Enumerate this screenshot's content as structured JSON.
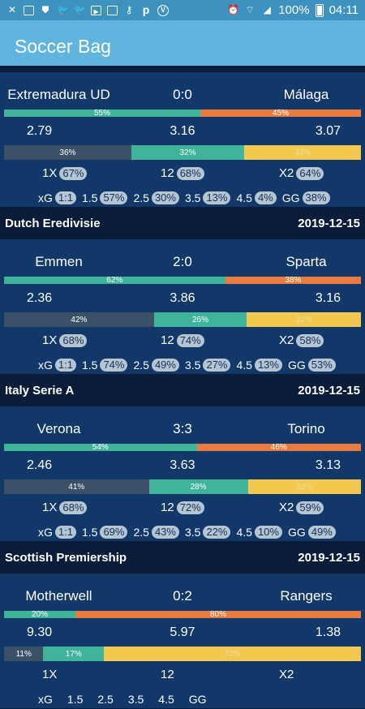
{
  "status_bar": {
    "battery_pct": "100%",
    "time": "04:11",
    "icons": [
      "missed-call-icon",
      "image-icon",
      "shield-icon",
      "twitter-icon",
      "twitter-icon",
      "youtube-icon",
      "video-icon",
      "key-icon",
      "p-icon",
      "v-icon",
      "alarm-icon",
      "wifi-icon",
      "signal-icon",
      "battery-icon"
    ]
  },
  "app_bar": {
    "title": "Soccer Bag"
  },
  "leagues": [
    {
      "name": "",
      "date": "",
      "matches": [
        {
          "home": "Extremadura UD",
          "score": "0:0",
          "away": "Málaga",
          "home_win_pct": 55,
          "away_win_pct": 45,
          "home_win_label": "55%",
          "away_win_label": "45%",
          "odds_1": "2.79",
          "odds_x": "3.16",
          "odds_2": "3.07",
          "prob_home": 36,
          "prob_draw": 32,
          "prob_away": 33,
          "prob_home_label": "36%",
          "prob_draw_label": "32%",
          "prob_away_label": "33%",
          "dc_1x": "67%",
          "dc_12": "68%",
          "dc_x2": "64%",
          "xg": "1:1",
          "o15": "57%",
          "o25": "30%",
          "o35": "13%",
          "o45": "4%",
          "gg": "38%"
        }
      ]
    },
    {
      "name": "Dutch Eredivisie",
      "date": "2019-12-15",
      "matches": [
        {
          "home": "Emmen",
          "score": "2:0",
          "away": "Sparta",
          "home_win_pct": 62,
          "away_win_pct": 38,
          "home_win_label": "62%",
          "away_win_label": "38%",
          "odds_1": "2.36",
          "odds_x": "3.86",
          "odds_2": "3.16",
          "prob_home": 42,
          "prob_draw": 26,
          "prob_away": 32,
          "prob_home_label": "42%",
          "prob_draw_label": "26%",
          "prob_away_label": "32%",
          "dc_1x": "68%",
          "dc_12": "74%",
          "dc_x2": "58%",
          "xg": "1:1",
          "o15": "74%",
          "o25": "49%",
          "o35": "27%",
          "o45": "13%",
          "gg": "53%"
        }
      ]
    },
    {
      "name": "Italy Serie A",
      "date": "2019-12-15",
      "matches": [
        {
          "home": "Verona",
          "score": "3:3",
          "away": "Torino",
          "home_win_pct": 54,
          "away_win_pct": 46,
          "home_win_label": "54%",
          "away_win_label": "46%",
          "odds_1": "2.46",
          "odds_x": "3.63",
          "odds_2": "3.13",
          "prob_home": 41,
          "prob_draw": 28,
          "prob_away": 32,
          "prob_home_label": "41%",
          "prob_draw_label": "28%",
          "prob_away_label": "32%",
          "dc_1x": "68%",
          "dc_12": "72%",
          "dc_x2": "59%",
          "xg": "1:1",
          "o15": "69%",
          "o25": "43%",
          "o35": "22%",
          "o45": "10%",
          "gg": "49%"
        }
      ]
    },
    {
      "name": "Scottish Premiership",
      "date": "2019-12-15",
      "matches": [
        {
          "home": "Motherwell",
          "score": "0:2",
          "away": "Rangers",
          "home_win_pct": 20,
          "away_win_pct": 80,
          "home_win_label": "20%",
          "away_win_label": "80%",
          "odds_1": "9.30",
          "odds_x": "5.97",
          "odds_2": "1.38",
          "prob_home": 11,
          "prob_draw": 17,
          "prob_away": 72,
          "prob_home_label": "11%",
          "prob_draw_label": "17%",
          "prob_away_label": "72%",
          "dc_1x": "",
          "dc_12": "",
          "dc_x2": "",
          "xg": "",
          "o15": "",
          "o25": "",
          "o35": "",
          "o45": "",
          "gg": ""
        }
      ]
    }
  ],
  "labels": {
    "dc_1x": "1X",
    "dc_12": "12",
    "dc_x2": "X2",
    "xg": "xG",
    "o15": "1.5",
    "o25": "2.5",
    "o35": "3.5",
    "o45": "4.5",
    "gg": "GG"
  },
  "colors": {
    "status_bar": "#3d92c0",
    "app_bar": "#5fb5dd",
    "league_header": "#0a1c37",
    "match_bg": "#12386a",
    "green": "#3fb49a",
    "orange": "#ec7b3f",
    "slate": "#3a5168",
    "yellow": "#f2c94c",
    "pill": "#b6c5d2"
  }
}
